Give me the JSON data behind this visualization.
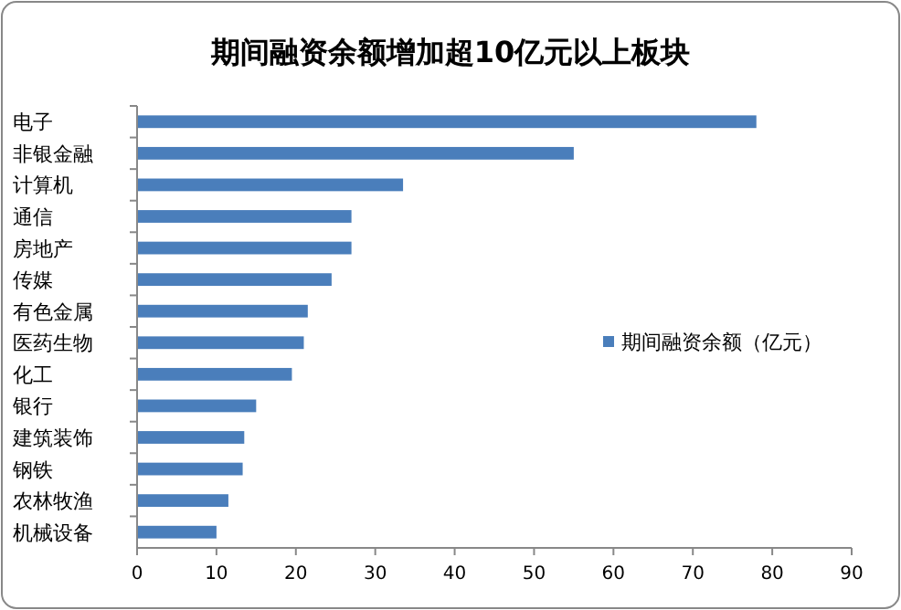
{
  "chart_data": {
    "type": "bar",
    "orientation": "horizontal",
    "title": "期间融资余额增加超10亿元以上板块",
    "categories": [
      "电子",
      "非银金融",
      "计算机",
      "通信",
      "房地产",
      "传媒",
      "有色金属",
      "医药生物",
      "化工",
      "银行",
      "建筑装饰",
      "钢铁",
      "农林牧渔",
      "机械设备"
    ],
    "series": [
      {
        "name": "期间融资余额（亿元）",
        "color": "#4a7ebb",
        "values": [
          78,
          55,
          33.5,
          27,
          27,
          24.5,
          21.5,
          21,
          19.5,
          15,
          13.5,
          13.3,
          11.5,
          10
        ]
      }
    ],
    "xlim": [
      0,
      90
    ],
    "xticks": [
      0,
      10,
      20,
      30,
      40,
      50,
      60,
      70,
      80,
      90
    ],
    "grid": false,
    "legend": "right"
  }
}
